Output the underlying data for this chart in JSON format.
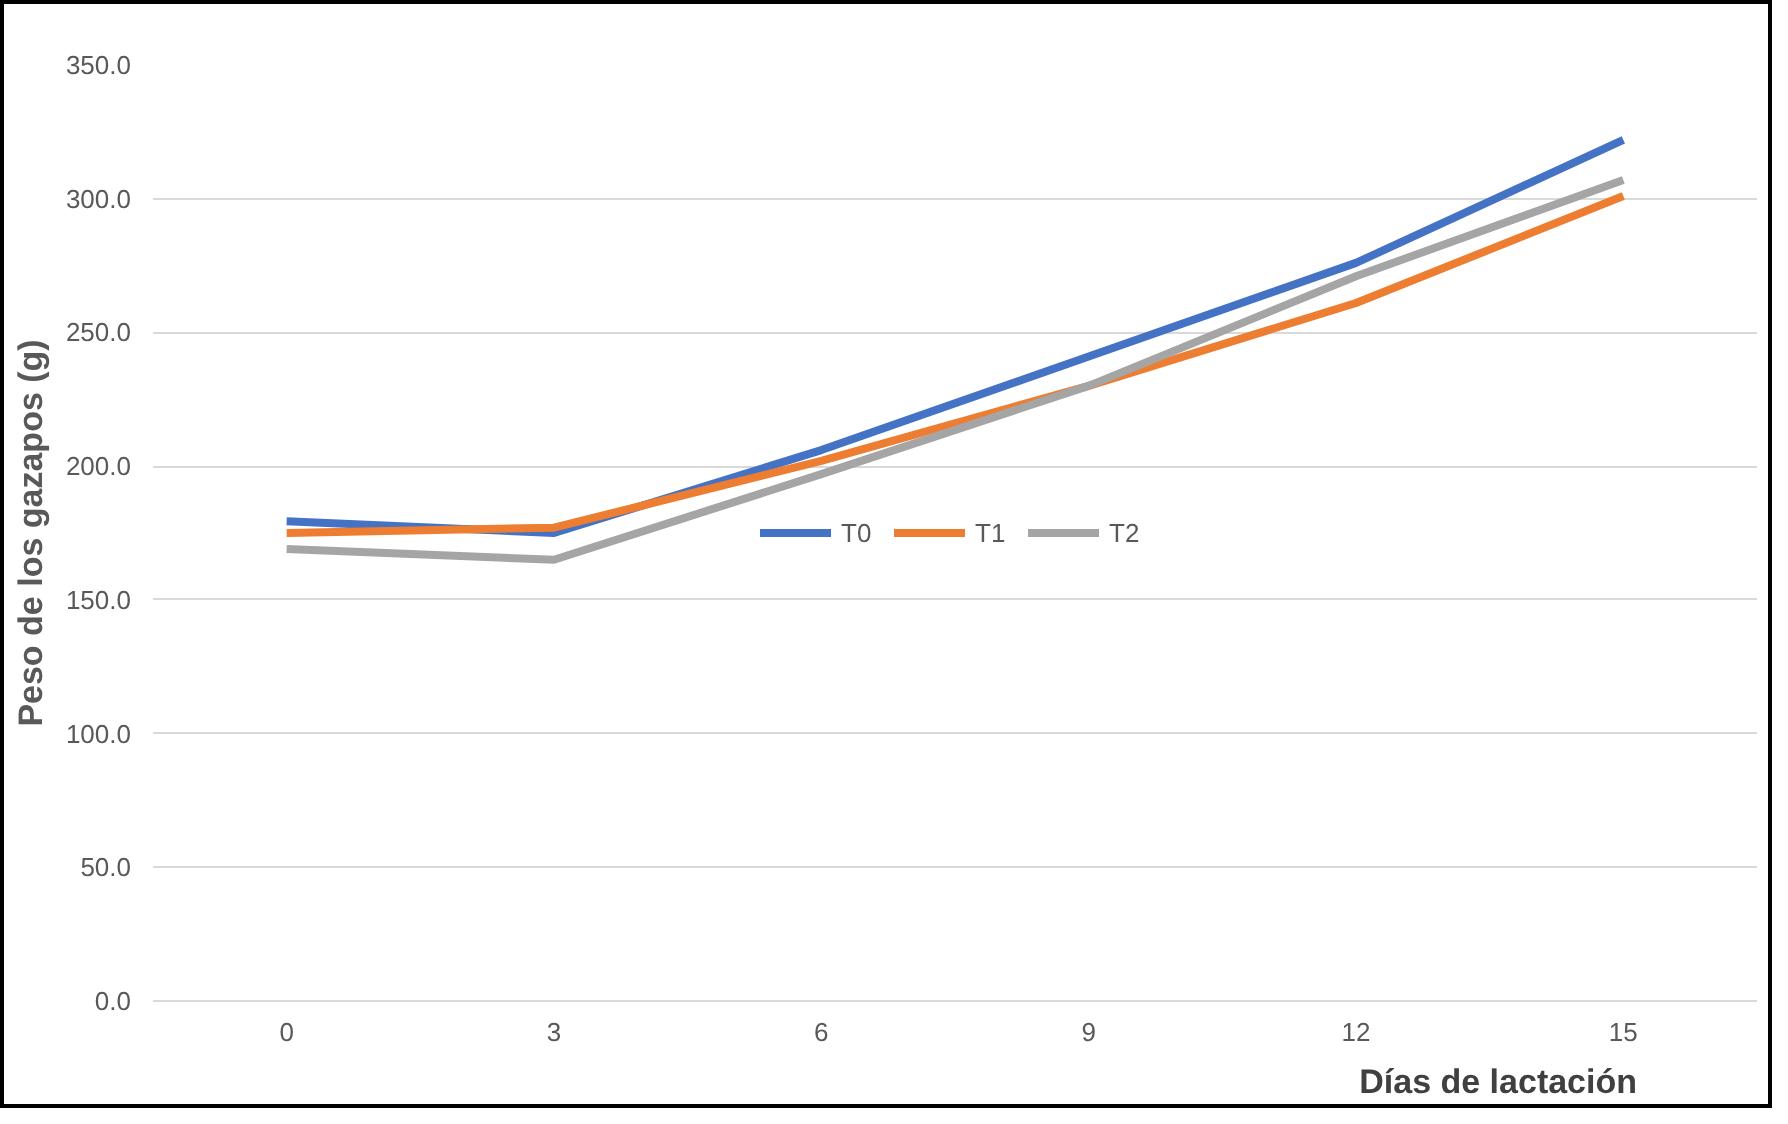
{
  "chart_data": {
    "type": "line",
    "xlabel": "Días de lactación",
    "ylabel": "Peso de los gazapos (g)",
    "categories": [
      "0",
      "3",
      "6",
      "9",
      "12",
      "15"
    ],
    "series": [
      {
        "name": "T0",
        "color": "#4472c4",
        "values": [
          179.4,
          175,
          206,
          241,
          276,
          322
        ]
      },
      {
        "name": "T1",
        "color": "#ed7d31",
        "values": [
          175,
          177,
          202,
          230,
          261,
          301
        ]
      },
      {
        "name": "T2",
        "color": "#a5a5a5",
        "values": [
          169,
          165,
          197,
          230,
          271,
          307
        ]
      }
    ],
    "ylim": [
      0,
      350
    ],
    "yticks": [
      {
        "value": 0,
        "label": "0.0"
      },
      {
        "value": 50,
        "label": "50.0"
      },
      {
        "value": 100,
        "label": "100.0"
      },
      {
        "value": 150,
        "label": "150.0"
      },
      {
        "value": 200,
        "label": "200.0"
      },
      {
        "value": 250,
        "label": "250.0"
      },
      {
        "value": 300,
        "label": "300.0"
      },
      {
        "value": 350,
        "label": "350.0"
      }
    ],
    "grid": "y",
    "legend": "center",
    "marker": "none",
    "line_style": "solid"
  }
}
